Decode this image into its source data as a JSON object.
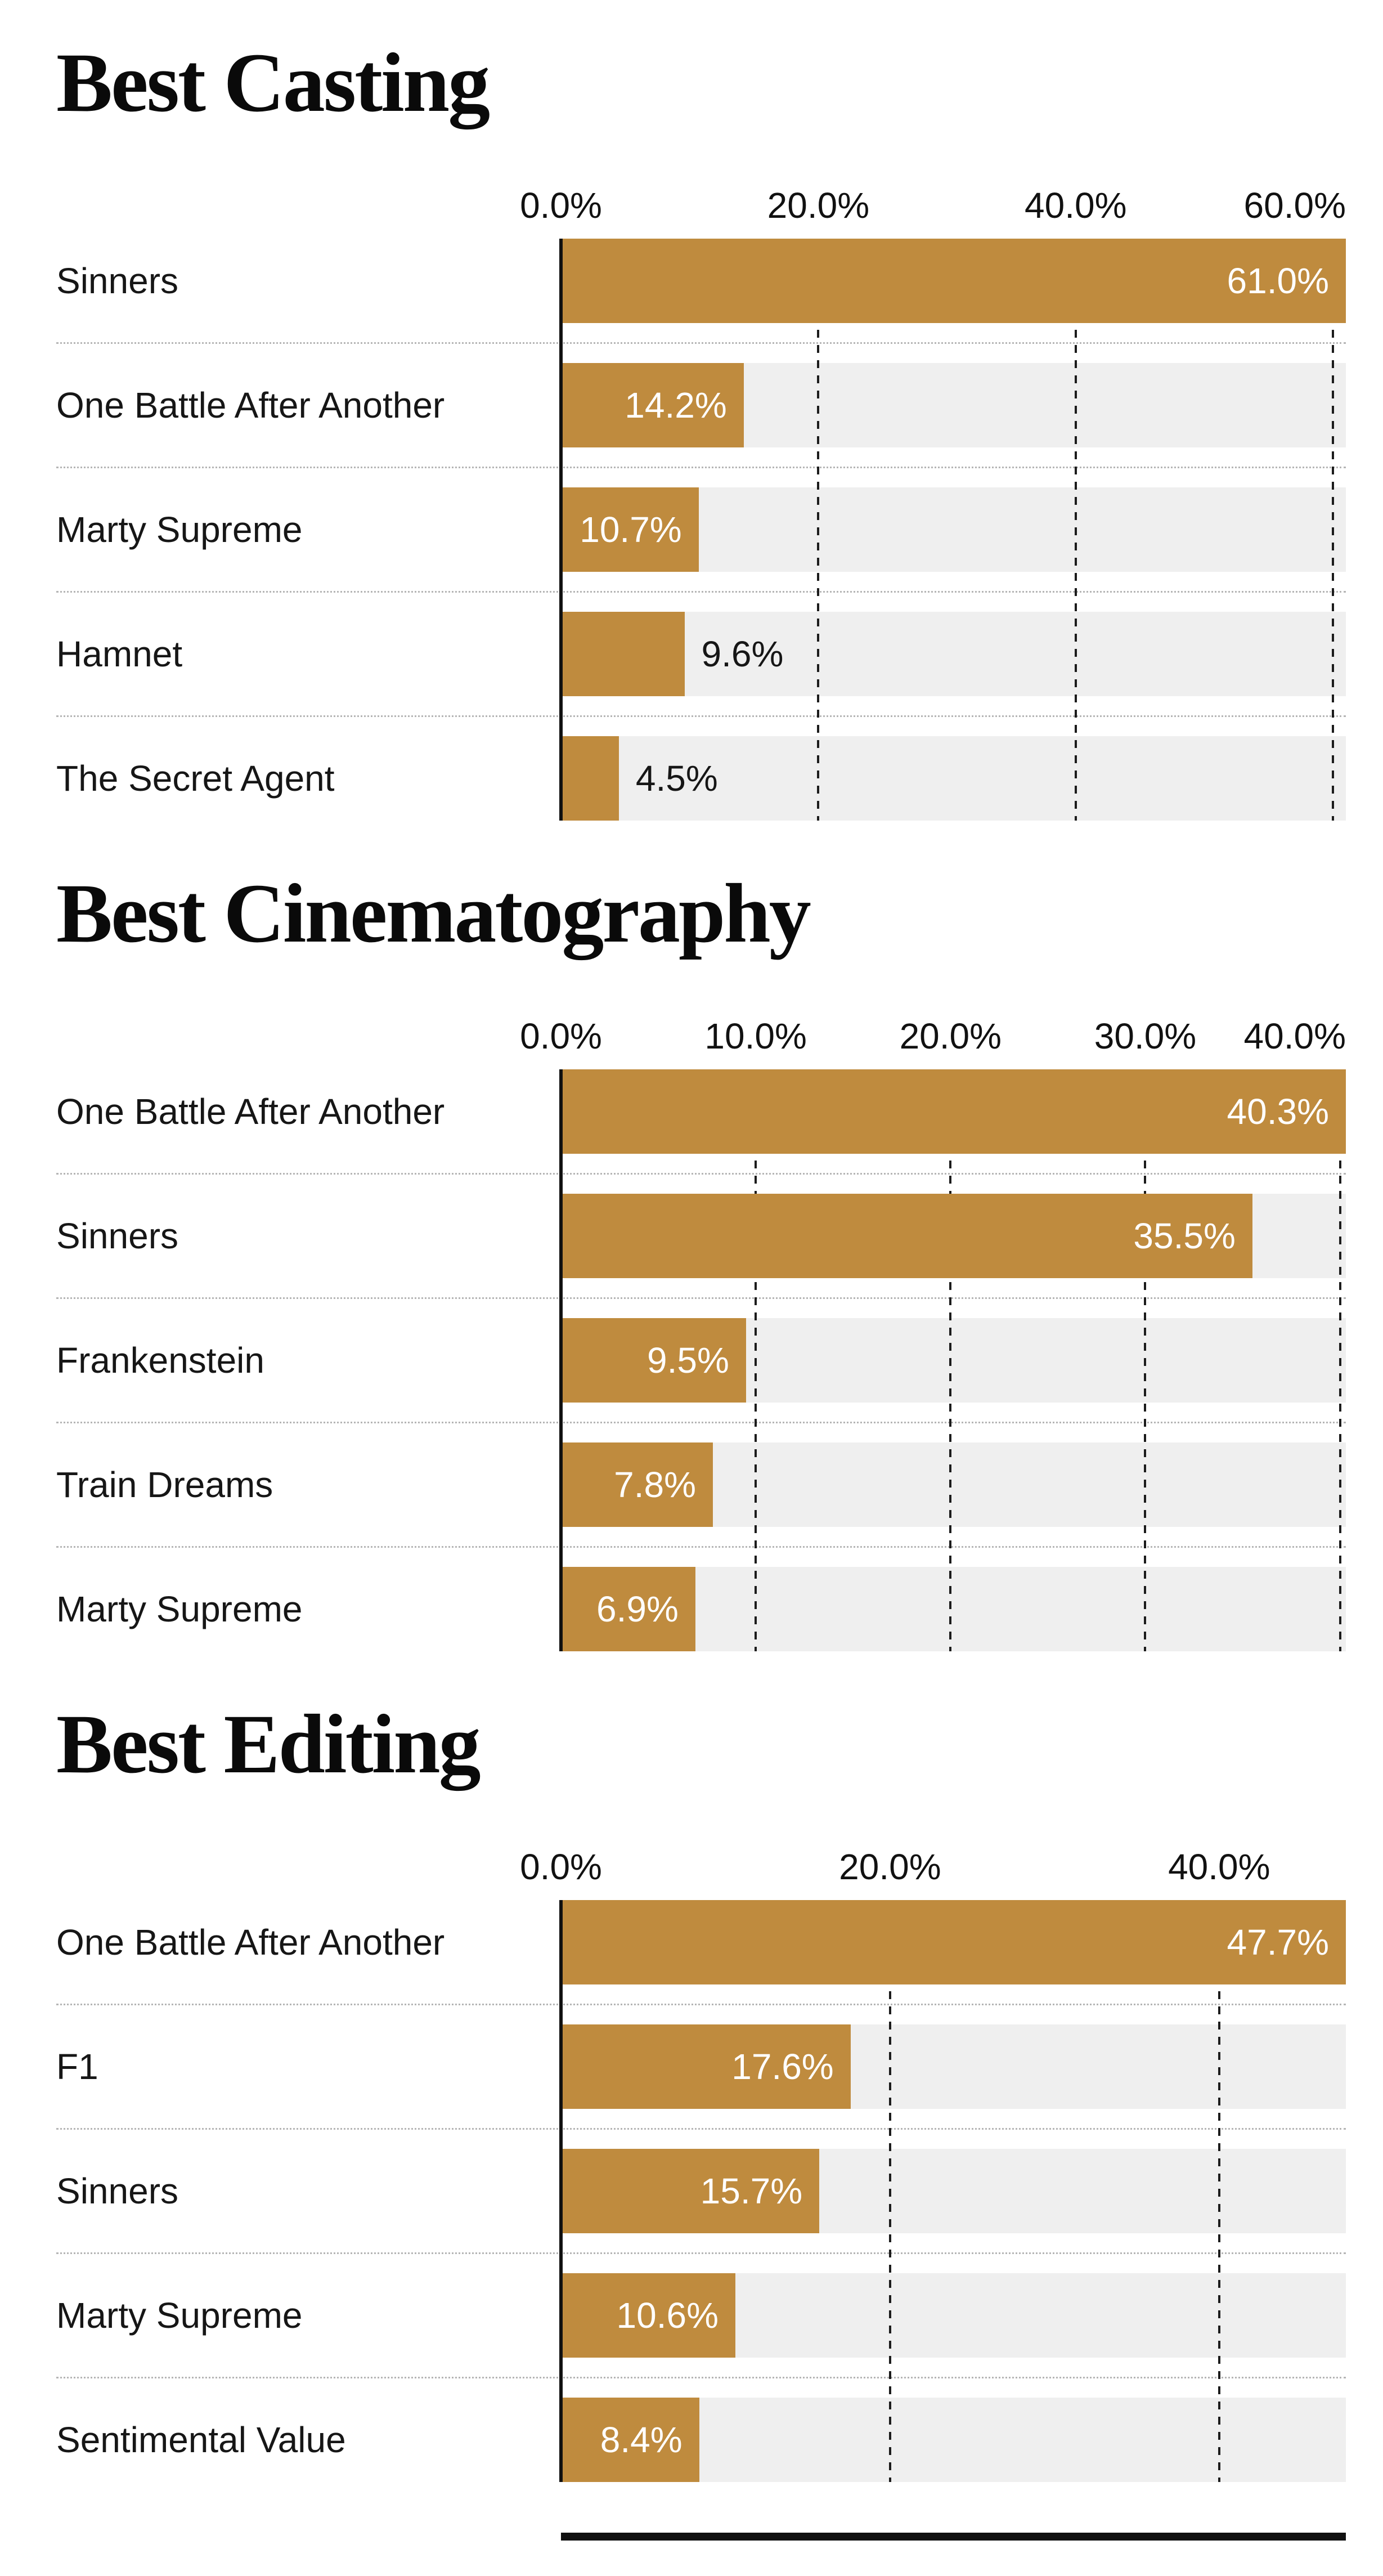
{
  "colors": {
    "bar": "#bf8b3e",
    "track": "#efefef",
    "grid": "#1c1c1c",
    "axis": "#111111",
    "title_text": "#0a0a0a",
    "label_text": "#161616",
    "value_inside": "#ffffff",
    "separator": "#b5b5b5",
    "bottom_rule": "#111111"
  },
  "chart_data": [
    {
      "type": "bar",
      "orientation": "horizontal",
      "title": "Best Casting",
      "categories": [
        "Sinners",
        "One Battle After Another",
        "Marty Supreme",
        "Hamnet",
        "The Secret Agent"
      ],
      "values": [
        61.0,
        14.2,
        10.7,
        9.6,
        4.5
      ],
      "value_labels": [
        "61.0%",
        "14.2%",
        "10.7%",
        "9.6%",
        "4.5%"
      ],
      "xlim": [
        0,
        61.0
      ],
      "ticks": [
        0,
        20,
        40,
        60
      ],
      "tick_labels": [
        "0.0%",
        "20.0%",
        "40.0%",
        "60.0%"
      ],
      "unit": "%",
      "grid": "dashed-vertical",
      "legend": "none"
    },
    {
      "type": "bar",
      "orientation": "horizontal",
      "title": "Best Cinematography",
      "categories": [
        "One Battle After Another",
        "Sinners",
        "Frankenstein",
        "Train Dreams",
        "Marty Supreme"
      ],
      "values": [
        40.3,
        35.5,
        9.5,
        7.8,
        6.9
      ],
      "value_labels": [
        "40.3%",
        "35.5%",
        "9.5%",
        "7.8%",
        "6.9%"
      ],
      "xlim": [
        0,
        40.3
      ],
      "ticks": [
        0,
        10,
        20,
        30,
        40
      ],
      "tick_labels": [
        "0.0%",
        "10.0%",
        "20.0%",
        "30.0%",
        "40.0%"
      ],
      "unit": "%",
      "grid": "dashed-vertical",
      "legend": "none"
    },
    {
      "type": "bar",
      "orientation": "horizontal",
      "title": "Best Editing",
      "categories": [
        "One Battle After Another",
        "F1",
        "Sinners",
        "Marty Supreme",
        "Sentimental Value"
      ],
      "values": [
        47.7,
        17.6,
        15.7,
        10.6,
        8.4
      ],
      "value_labels": [
        "47.7%",
        "17.6%",
        "15.7%",
        "10.6%",
        "8.4%"
      ],
      "xlim": [
        0,
        47.7
      ],
      "ticks": [
        0,
        20,
        40
      ],
      "tick_labels": [
        "0.0%",
        "20.0%",
        "40.0%"
      ],
      "unit": "%",
      "grid": "dashed-vertical",
      "legend": "none"
    }
  ]
}
